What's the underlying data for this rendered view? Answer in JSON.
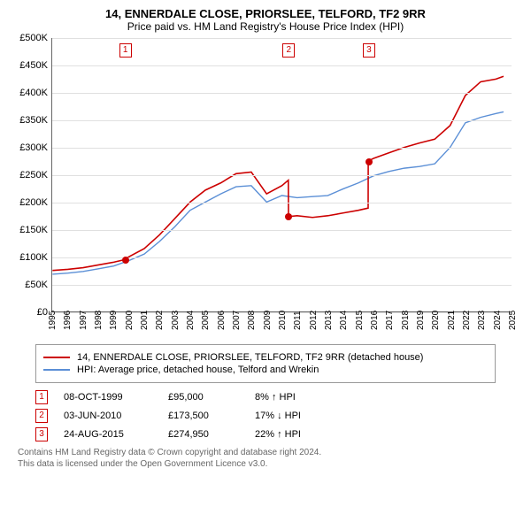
{
  "title": {
    "line1": "14, ENNERDALE CLOSE, PRIORSLEE, TELFORD, TF2 9RR",
    "line2": "Price paid vs. HM Land Registry's House Price Index (HPI)"
  },
  "chart": {
    "type": "line",
    "background_color": "#ffffff",
    "grid_color": "#e0e0e0",
    "axis_color": "#666666",
    "tick_font_size": 11,
    "ylim": [
      0,
      500000
    ],
    "ytick_step": 50000,
    "yticks": [
      "£0",
      "£50K",
      "£100K",
      "£150K",
      "£200K",
      "£250K",
      "£300K",
      "£350K",
      "£400K",
      "£450K",
      "£500K"
    ],
    "xlim": [
      1995,
      2025
    ],
    "xticks": [
      "1995",
      "1996",
      "1997",
      "1998",
      "1999",
      "2000",
      "2001",
      "2002",
      "2003",
      "2004",
      "2005",
      "2006",
      "2007",
      "2008",
      "2009",
      "2010",
      "2011",
      "2012",
      "2013",
      "2014",
      "2015",
      "2016",
      "2017",
      "2018",
      "2019",
      "2020",
      "2021",
      "2022",
      "2023",
      "2024",
      "2025"
    ],
    "series": {
      "price_paid": {
        "label": "14, ENNERDALE CLOSE, PRIORSLEE, TELFORD, TF2 9RR (detached house)",
        "color": "#cc0000",
        "line_width": 1.6,
        "points": [
          [
            1995,
            75000
          ],
          [
            1996,
            77000
          ],
          [
            1997,
            80000
          ],
          [
            1998,
            85000
          ],
          [
            1999,
            90000
          ],
          [
            1999.77,
            95000
          ],
          [
            2000,
            100000
          ],
          [
            2001,
            115000
          ],
          [
            2002,
            140000
          ],
          [
            2003,
            170000
          ],
          [
            2004,
            200000
          ],
          [
            2005,
            222000
          ],
          [
            2006,
            235000
          ],
          [
            2007,
            252000
          ],
          [
            2008,
            255000
          ],
          [
            2009,
            215000
          ],
          [
            2010,
            230000
          ],
          [
            2010.42,
            240000
          ],
          [
            2010.43,
            173500
          ],
          [
            2011,
            175000
          ],
          [
            2012,
            172000
          ],
          [
            2013,
            175000
          ],
          [
            2014,
            180000
          ],
          [
            2015,
            185000
          ],
          [
            2015.64,
            189000
          ],
          [
            2015.65,
            274950
          ],
          [
            2016,
            280000
          ],
          [
            2017,
            290000
          ],
          [
            2018,
            300000
          ],
          [
            2019,
            308000
          ],
          [
            2020,
            315000
          ],
          [
            2021,
            340000
          ],
          [
            2022,
            395000
          ],
          [
            2023,
            420000
          ],
          [
            2024,
            425000
          ],
          [
            2024.5,
            430000
          ]
        ]
      },
      "hpi": {
        "label": "HPI: Average price, detached house, Telford and Wrekin",
        "color": "#5b8fd6",
        "line_width": 1.4,
        "points": [
          [
            1995,
            68000
          ],
          [
            1996,
            70000
          ],
          [
            1997,
            73000
          ],
          [
            1998,
            78000
          ],
          [
            1999,
            83000
          ],
          [
            2000,
            93000
          ],
          [
            2001,
            105000
          ],
          [
            2002,
            128000
          ],
          [
            2003,
            155000
          ],
          [
            2004,
            185000
          ],
          [
            2005,
            200000
          ],
          [
            2006,
            215000
          ],
          [
            2007,
            228000
          ],
          [
            2008,
            230000
          ],
          [
            2009,
            200000
          ],
          [
            2010,
            212000
          ],
          [
            2011,
            208000
          ],
          [
            2012,
            210000
          ],
          [
            2013,
            212000
          ],
          [
            2014,
            224000
          ],
          [
            2015,
            235000
          ],
          [
            2016,
            248000
          ],
          [
            2017,
            256000
          ],
          [
            2018,
            262000
          ],
          [
            2019,
            265000
          ],
          [
            2020,
            270000
          ],
          [
            2021,
            300000
          ],
          [
            2022,
            345000
          ],
          [
            2023,
            355000
          ],
          [
            2024,
            362000
          ],
          [
            2024.5,
            365000
          ]
        ]
      }
    },
    "markers": [
      {
        "id": "1",
        "x": 1999.77,
        "y": 95000
      },
      {
        "id": "2",
        "x": 2010.42,
        "y": 173500
      },
      {
        "id": "3",
        "x": 2015.65,
        "y": 274950
      }
    ],
    "marker_color": "#cc0000",
    "marker_box_bg": "#ffffff"
  },
  "legend": {
    "border_color": "#999999",
    "items": [
      {
        "color": "#cc0000",
        "label": "14, ENNERDALE CLOSE, PRIORSLEE, TELFORD, TF2 9RR (detached house)"
      },
      {
        "color": "#5b8fd6",
        "label": "HPI: Average price, detached house, Telford and Wrekin"
      }
    ]
  },
  "events": [
    {
      "id": "1",
      "date": "08-OCT-1999",
      "price": "£95,000",
      "delta": "8% ↑ HPI"
    },
    {
      "id": "2",
      "date": "03-JUN-2010",
      "price": "£173,500",
      "delta": "17% ↓ HPI"
    },
    {
      "id": "3",
      "date": "24-AUG-2015",
      "price": "£274,950",
      "delta": "22% ↑ HPI"
    }
  ],
  "footer": {
    "line1": "Contains HM Land Registry data © Crown copyright and database right 2024.",
    "line2": "This data is licensed under the Open Government Licence v3.0."
  }
}
